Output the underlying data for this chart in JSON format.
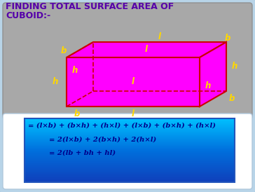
{
  "title_line1": "FINDING TOTAL SURFACE AREA OF",
  "title_line2": "CUBOID:-",
  "title_color": "#5500AA",
  "bg_outer": "#B8D4E8",
  "bg_top_box": "#A8A8A8",
  "bg_bottom_box_top": "#1060CC",
  "bg_bottom_box_bot": "#00AAEE",
  "cuboid_face_color": "#FF00FF",
  "cuboid_edge_color": "#CC0000",
  "label_color": "#FFD700",
  "formula_text_color": "#00008B",
  "line1": "= (l×b) + (b×h) + (h×l) + (l×b) + (b×h) + (h×l)",
  "line2": "= 2(l×b) + 2(b×h) + 2(h×l)",
  "line3": "= 2(lb + bh + hl)"
}
